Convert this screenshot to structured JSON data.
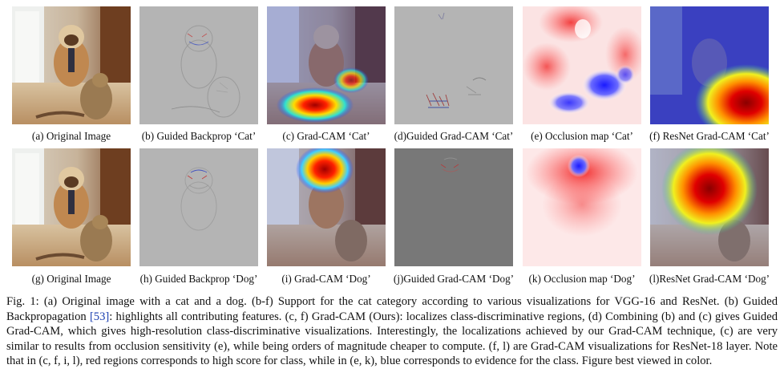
{
  "figure": {
    "row1_captions": {
      "a": "(a) Original Image",
      "b": "(b) Guided Backprop ‘Cat’",
      "c": "(c) Grad-CAM ‘Cat’",
      "d": "(d)Guided Grad-CAM ‘Cat’",
      "e": "(e) Occlusion map ‘Cat’",
      "f": "(f) ResNet Grad-CAM ‘Cat’"
    },
    "row2_captions": {
      "g": "(g) Original Image",
      "h": "(h) Guided Backprop ‘Dog’",
      "i": "(i) Grad-CAM ‘Dog’",
      "j": "(j)Guided Grad-CAM ‘Dog’",
      "k": "(k) Occlusion map ‘Dog’",
      "l": "(l)ResNet Grad-CAM ‘Dog’"
    },
    "caption": {
      "part1": "Fig. 1: (a) Original image with a cat and a dog. (b-f) Support for the cat category according to various visualizations for VGG-16 and ResNet. (b) Guided Backpropagation ",
      "ref": "[53]",
      "part2": ": highlights all contributing features. (c, f) Grad-CAM (Ours): localizes class-discriminative regions, (d) Combining (b) and (c) gives Guided Grad-CAM, which gives high-resolution class-discriminative visualizations. Interestingly, the localizations achieved by our Grad-CAM technique, (c) are very similar to results from occlusion sensitivity (e), while being orders of magnitude cheaper to compute. (f, l) are Grad-CAM visualizations for ResNet-18 layer. Note that in (c, f, i, l), red regions corresponds to high score for class, while in (e, k), blue corresponds to evidence for the class. Figure best viewed in color."
    }
  }
}
